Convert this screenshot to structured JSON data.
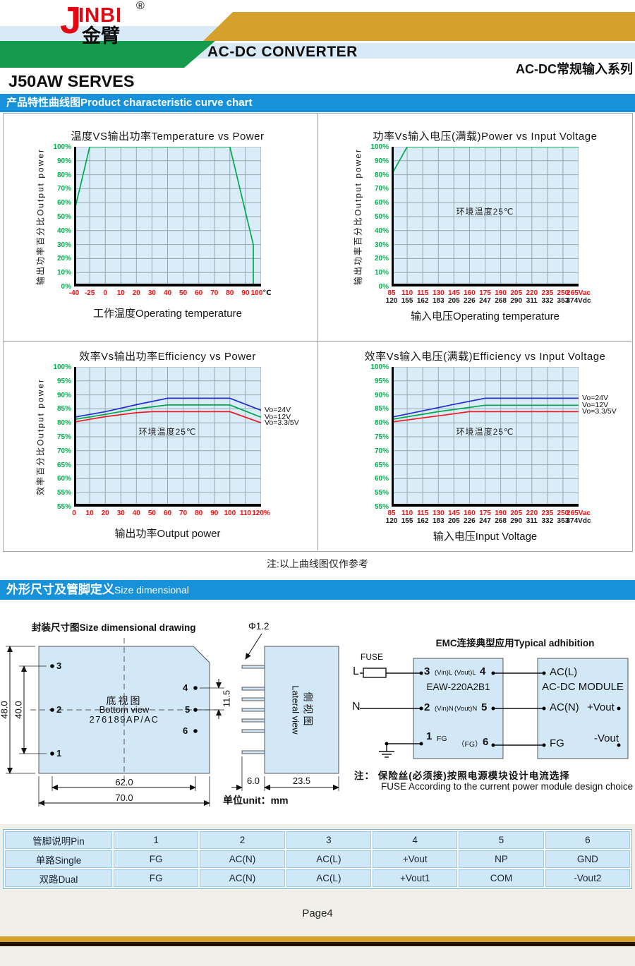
{
  "header": {
    "logo": {
      "j": "J",
      "brand": "INBI",
      "reg": "®",
      "cn": "金臂"
    },
    "product_type": "AC-DC CONVERTER",
    "series_cn": "AC-DC常规输入系列",
    "model": "J50AW SERVES"
  },
  "banners": {
    "curve": "产品特性曲线图Product characteristic curve chart",
    "size_cn": "外形尺寸及管脚定义",
    "size_en": "Size dimensional"
  },
  "note_mid": "注:以上曲线图仅作参考",
  "colors": {
    "banner_blue": "#1791d9",
    "gold": "#d5a02b",
    "green_band": "#149a4a",
    "light_blue_band": "#d9e9f6",
    "plot_bg": "#daecf8",
    "grid": "#96a9b0",
    "brand_red": "#e30613",
    "tick_green": "#00b24e",
    "tick_red": "#ee1111",
    "curve_green": "#00ab4e",
    "curve_blue": "#2230d2",
    "curve_red": "#ec1c24"
  },
  "chart_data": [
    {
      "id": "temp-vs-power",
      "type": "line",
      "grid": true,
      "title": "温度VS输出功率Temperature vs Power",
      "y_title": "输出功率百分比Output power",
      "x_title": "工作温度Operating temperature",
      "x_labels": [
        "-40",
        "-25",
        "0",
        "10",
        "20",
        "30",
        "40",
        "50",
        "60",
        "70",
        "80",
        "90",
        "100"
      ],
      "x_suffix": "℃",
      "x_suffix_color": "#1a1a1a",
      "x_color": "#ee1111",
      "y_labels": [
        "100%",
        "90%",
        "80%",
        "70%",
        "60%",
        "50%",
        "40%",
        "30%",
        "20%",
        "10%",
        "0%"
      ],
      "ylim": [
        0,
        100
      ],
      "series": [
        {
          "name": "",
          "color": "#00ab4e",
          "points": [
            [
              0,
              53
            ],
            [
              1,
              100
            ],
            [
              10,
              100
            ],
            [
              11.5,
              30
            ],
            [
              11.5,
              0
            ]
          ]
        }
      ]
    },
    {
      "id": "power-vs-input-voltage",
      "type": "line",
      "grid": true,
      "title": "功率Vs输入电压(满载)Power vs Input Voltage",
      "y_title": "输出功率百分比Output power",
      "x_title": "输入电压Operating temperature",
      "x_labels": [
        "85",
        "110",
        "115",
        "130",
        "145",
        "160",
        "175",
        "190",
        "205",
        "220",
        "235",
        "250",
        "265"
      ],
      "x_suffix": "Vac",
      "x_suffix_color": "#ee1111",
      "x_color": "#ee1111",
      "x_labels2": [
        "120",
        "155",
        "162",
        "183",
        "205",
        "226",
        "247",
        "268",
        "290",
        "311",
        "332",
        "353",
        "374"
      ],
      "x_suffix2": "Vdc",
      "x_suffix2_color": "#1a1a1a",
      "x_color2": "#1a1a1a",
      "y_labels": [
        "100%",
        "90%",
        "80%",
        "70%",
        "60%",
        "50%",
        "40%",
        "30%",
        "20%",
        "10%",
        "0%"
      ],
      "ylim": [
        0,
        100
      ],
      "annotation": "环境温度25℃",
      "series": [
        {
          "name": "",
          "color": "#00ab4e",
          "points": [
            [
              0,
              80
            ],
            [
              1,
              100
            ],
            [
              12,
              100
            ]
          ]
        }
      ]
    },
    {
      "id": "efficiency-vs-power",
      "type": "line",
      "grid": true,
      "title": "效率Vs输出功率Efficiency vs Power",
      "y_title": "效率百分比Output power",
      "x_title": "输出功率Output power",
      "x_labels": [
        "0",
        "10",
        "20",
        "30",
        "40",
        "50",
        "60",
        "70",
        "80",
        "90",
        "100",
        "110",
        "120"
      ],
      "x_suffix": "%",
      "x_suffix_color": "#ee1111",
      "x_color": "#ee1111",
      "y_labels": [
        "100%",
        "95%",
        "90%",
        "85%",
        "80%",
        "75%",
        "70%",
        "65%",
        "60%",
        "55%",
        "55%"
      ],
      "ylim": [
        50,
        100
      ],
      "annotation": "环境温度25℃",
      "series": [
        {
          "name": "Vo=24V",
          "color": "#2230d2",
          "points": [
            [
              0,
              82
            ],
            [
              2,
              84
            ],
            [
              4,
              86.5
            ],
            [
              6,
              88.8
            ],
            [
              10,
              88.8
            ],
            [
              12,
              84.5
            ]
          ]
        },
        {
          "name": "Vo=12V",
          "color": "#00a651",
          "points": [
            [
              0,
              81.2
            ],
            [
              2,
              83
            ],
            [
              4,
              85
            ],
            [
              6,
              86.4
            ],
            [
              10,
              86.4
            ],
            [
              12,
              82
            ]
          ]
        },
        {
          "name": "Vo=3.3/5V",
          "color": "#ec1c24",
          "points": [
            [
              0,
              80.3
            ],
            [
              2,
              82.2
            ],
            [
              4,
              83.6
            ],
            [
              5,
              84
            ],
            [
              10,
              84
            ],
            [
              12,
              80
            ]
          ]
        }
      ]
    },
    {
      "id": "efficiency-vs-input-voltage",
      "type": "line",
      "grid": true,
      "title": "效率Vs输入电压(满载)Efficiency vs Input Voltage",
      "x_title": "输入电压Input Voltage",
      "x_labels": [
        "85",
        "110",
        "115",
        "130",
        "145",
        "160",
        "175",
        "190",
        "205",
        "220",
        "235",
        "250",
        "265"
      ],
      "x_suffix": "Vac",
      "x_suffix_color": "#ee1111",
      "x_color": "#ee1111",
      "x_labels2": [
        "120",
        "155",
        "162",
        "183",
        "205",
        "226",
        "247",
        "268",
        "290",
        "311",
        "332",
        "353",
        "374"
      ],
      "x_suffix2": "Vdc",
      "x_suffix2_color": "#1a1a1a",
      "x_color2": "#1a1a1a",
      "y_labels": [
        "100%",
        "95%",
        "90%",
        "85%",
        "80%",
        "75%",
        "70%",
        "65%",
        "60%",
        "55%",
        "55%"
      ],
      "ylim": [
        50,
        100
      ],
      "annotation": "环境温度25℃",
      "series": [
        {
          "name": "Vo=24V",
          "color": "#2230d2",
          "points": [
            [
              0,
              82
            ],
            [
              2,
              84.3
            ],
            [
              4,
              86.6
            ],
            [
              6,
              88.8
            ],
            [
              12,
              88.8
            ]
          ]
        },
        {
          "name": "Vo=12V",
          "color": "#00a651",
          "points": [
            [
              0,
              81.2
            ],
            [
              3,
              84
            ],
            [
              6,
              86.3
            ],
            [
              12,
              86.3
            ]
          ]
        },
        {
          "name": "Vo=3.3/5V",
          "color": "#ec1c24",
          "points": [
            [
              0,
              80.3
            ],
            [
              3,
              82.5
            ],
            [
              5,
              84
            ],
            [
              12,
              84
            ]
          ]
        }
      ]
    }
  ],
  "drawing": {
    "title": "封装尺寸图Size dimensional  drawing",
    "view_cn": "底视图",
    "view_en": "Bottom view",
    "part_no": "276189AP/AC",
    "pins": {
      "p1": "1",
      "p2": "2",
      "p3": "3",
      "p4": "4",
      "p5": "5",
      "p6": "6"
    },
    "dims": {
      "height": "48.0",
      "pin_height": "40.0",
      "pin_span": "62.0",
      "width": "70.0",
      "right_gap": "11.5",
      "pin_dia": "Φ1.2",
      "pin_len": "6.0",
      "depth": "23.5"
    },
    "lateral_cn": "侧视图",
    "lateral_en": "Lateral view",
    "unit": "单位unit：mm"
  },
  "emc": {
    "title": "EMC连接典型应用Typical adhibition",
    "l": "L",
    "fuse": "FUSE",
    "n": "N",
    "filter": {
      "pin3": "3",
      "vin_l": "(Vin)L",
      "vout_l": "(Vout)L",
      "pin4": "4",
      "model": "EAW-220A2B1",
      "pin2": "2",
      "vin_n": "(Vin)N",
      "vout_n": "(Vout)N",
      "pin5": "5",
      "pin1": "1",
      "fg": "FG",
      "fg6": "（FG）",
      "pin6": "6"
    },
    "module": {
      "acl": "AC(L)",
      "title": "AC-DC MODULE",
      "acn": "AC(N)",
      "vout_p": "+Vout",
      "fg": "FG",
      "vout_n": "-Vout"
    },
    "note_cn": "注： 保险丝(必须接)按照电源模块设计电流选择",
    "note_en": "FUSE According to the current power module design choice"
  },
  "pin_table": {
    "header": [
      "管脚说明Pin",
      "1",
      "2",
      "3",
      "4",
      "5",
      "6"
    ],
    "rows": [
      [
        "单路Single",
        "FG",
        "AC(N)",
        "AC(L)",
        "+Vout",
        "NP",
        "GND"
      ],
      [
        "双路Dual",
        "FG",
        "AC(N)",
        "AC(L)",
        "+Vout1",
        "COM",
        "-Vout2"
      ]
    ]
  },
  "footer": {
    "page": "Page4"
  }
}
